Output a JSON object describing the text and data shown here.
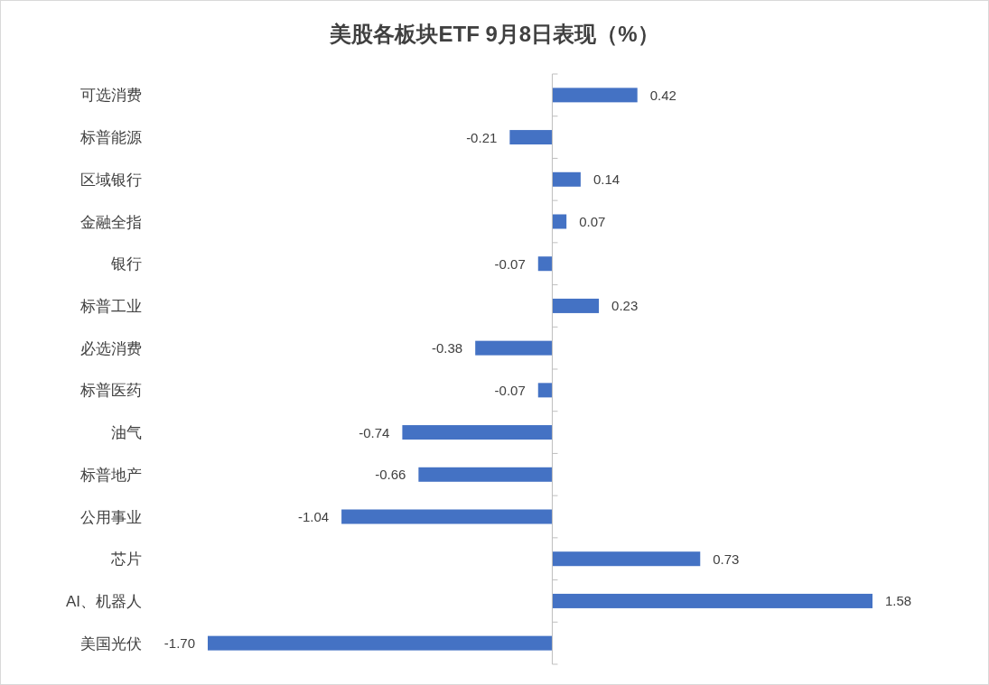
{
  "chart_data": {
    "type": "bar",
    "orientation": "horizontal",
    "title": "美股各板块ETF  9月8日表现（%）",
    "categories": [
      "可选消费",
      "标普能源",
      "区域银行",
      "金融全指",
      "银行",
      "标普工业",
      "必选消费",
      "标普医药",
      "油气",
      "标普地产",
      "公用事业",
      "芯片",
      "AI、机器人",
      "美国光伏"
    ],
    "values": [
      0.42,
      -0.21,
      0.14,
      0.07,
      -0.07,
      0.23,
      -0.38,
      -0.07,
      -0.74,
      -0.66,
      -1.04,
      0.73,
      1.58,
      -1.7
    ],
    "value_labels": [
      "0.42",
      "-0.21",
      "0.14",
      "0.07",
      "-0.07",
      "0.23",
      "-0.38",
      "-0.07",
      "-0.74",
      "-0.66",
      "-1.04",
      "0.73",
      "1.58",
      "-1.70"
    ],
    "color": "#4472c4"
  }
}
